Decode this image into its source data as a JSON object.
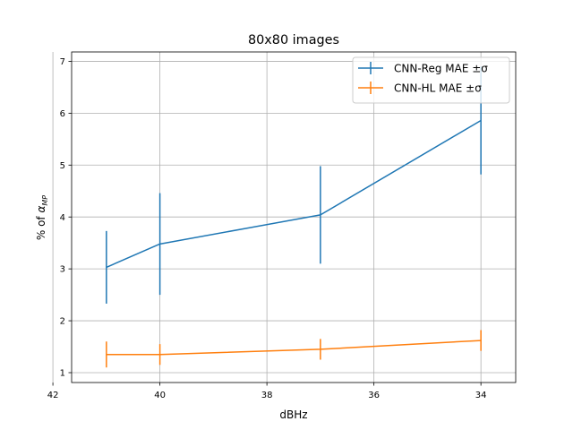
{
  "chart_data": {
    "type": "line",
    "title": "80x80 images",
    "xlabel": "dBHz",
    "ylabel": "% of α_MP",
    "ylabel_main": "% of ",
    "ylabel_alpha": "α",
    "ylabel_sub": "MP",
    "x": [
      41,
      40,
      37,
      34
    ],
    "xlim": [
      41.65,
      33.35
    ],
    "x_reversed": true,
    "xticks": [
      42,
      40,
      38,
      36,
      34
    ],
    "ylim": [
      0.81,
      7.18
    ],
    "yticks": [
      1,
      2,
      3,
      4,
      5,
      6,
      7
    ],
    "grid": true,
    "legend_position": "top-right",
    "series": [
      {
        "name": "CNN-Reg MAE ±σ",
        "color": "#1f77b4",
        "values": [
          3.03,
          3.48,
          4.04,
          5.86
        ],
        "errors": [
          0.7,
          0.98,
          0.94,
          1.04
        ]
      },
      {
        "name": "CNN-HL MAE ±σ",
        "color": "#ff7f0e",
        "values": [
          1.35,
          1.35,
          1.45,
          1.62
        ],
        "errors": [
          0.25,
          0.2,
          0.2,
          0.2
        ]
      }
    ]
  }
}
